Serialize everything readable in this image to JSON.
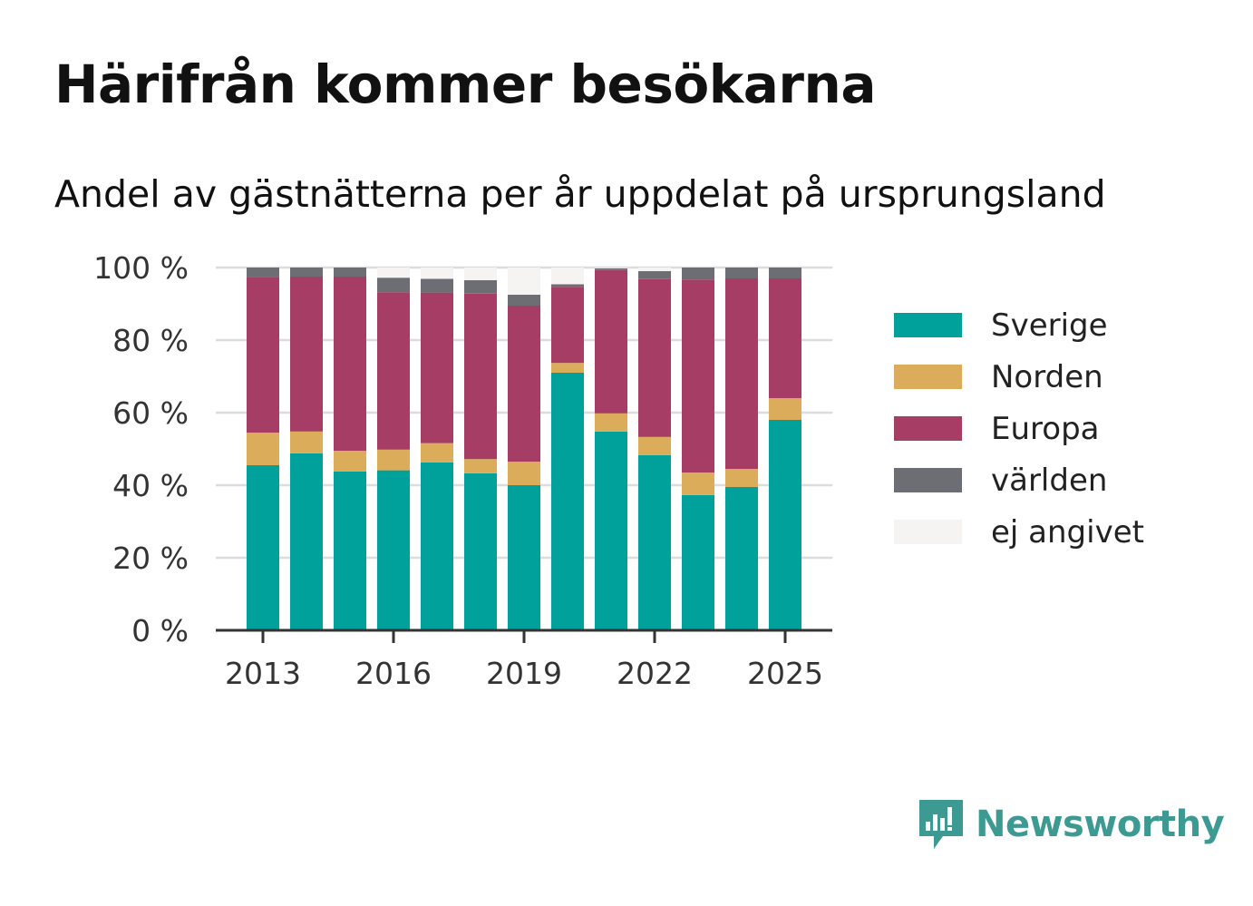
{
  "header": {
    "title": "Härifrån kommer besökarna",
    "subtitle": "Andel av gästnätterna per år uppdelat på ursprungsland"
  },
  "chart_data": {
    "type": "bar",
    "stacked": true,
    "categories": [
      "2013",
      "2014",
      "2015",
      "2016",
      "2017",
      "2018",
      "2019",
      "2020",
      "2021",
      "2022",
      "2023",
      "2024",
      "2025"
    ],
    "x_tick_labels": [
      "2013",
      "2016",
      "2019",
      "2022",
      "2025"
    ],
    "y_ticks": [
      0,
      20,
      40,
      60,
      80,
      100
    ],
    "y_tick_labels": [
      "0 %",
      "20 %",
      "40 %",
      "60 %",
      "80 %",
      "100 %"
    ],
    "ylim": [
      0,
      100
    ],
    "grid": true,
    "legend_position": "right",
    "xlabel": "",
    "ylabel": "",
    "series": [
      {
        "name": "Sverige",
        "color": "#00a19a",
        "values": [
          45.5,
          48.8,
          43.8,
          44.1,
          46.3,
          43.3,
          40.0,
          71.0,
          54.8,
          48.3,
          37.3,
          39.5,
          58.0
        ]
      },
      {
        "name": "Norden",
        "color": "#dbac5a",
        "values": [
          9.0,
          6.0,
          5.7,
          5.7,
          5.3,
          3.9,
          6.5,
          2.7,
          5.0,
          5.0,
          6.2,
          5.0,
          6.0
        ]
      },
      {
        "name": "Europa",
        "color": "#a53d65",
        "values": [
          42.9,
          42.7,
          48.0,
          43.4,
          41.5,
          45.6,
          43.0,
          21.0,
          39.5,
          43.5,
          53.2,
          52.5,
          33.0
        ]
      },
      {
        "name": "världen",
        "color": "#6d6e73",
        "values": [
          2.6,
          2.5,
          2.5,
          4.0,
          3.8,
          3.7,
          3.0,
          0.7,
          0.5,
          2.2,
          3.3,
          3.0,
          3.0
        ]
      },
      {
        "name": "ej angivet",
        "color": "#f5f4f2",
        "values": [
          0.0,
          0.0,
          0.0,
          2.8,
          3.1,
          3.5,
          7.5,
          4.6,
          0.2,
          1.0,
          0.0,
          0.0,
          0.0
        ]
      }
    ]
  },
  "legend": {
    "items": [
      {
        "label": "Sverige",
        "color": "#00a19a"
      },
      {
        "label": "Norden",
        "color": "#dbac5a"
      },
      {
        "label": "Europa",
        "color": "#a53d65"
      },
      {
        "label": "världen",
        "color": "#6d6e73"
      },
      {
        "label": "ej angivet",
        "color": "#f5f4f2"
      }
    ]
  },
  "branding": {
    "logo_text": "Newsworthy",
    "logo_icon": "newsworthy-bars-icon",
    "color": "#3d9a93"
  }
}
